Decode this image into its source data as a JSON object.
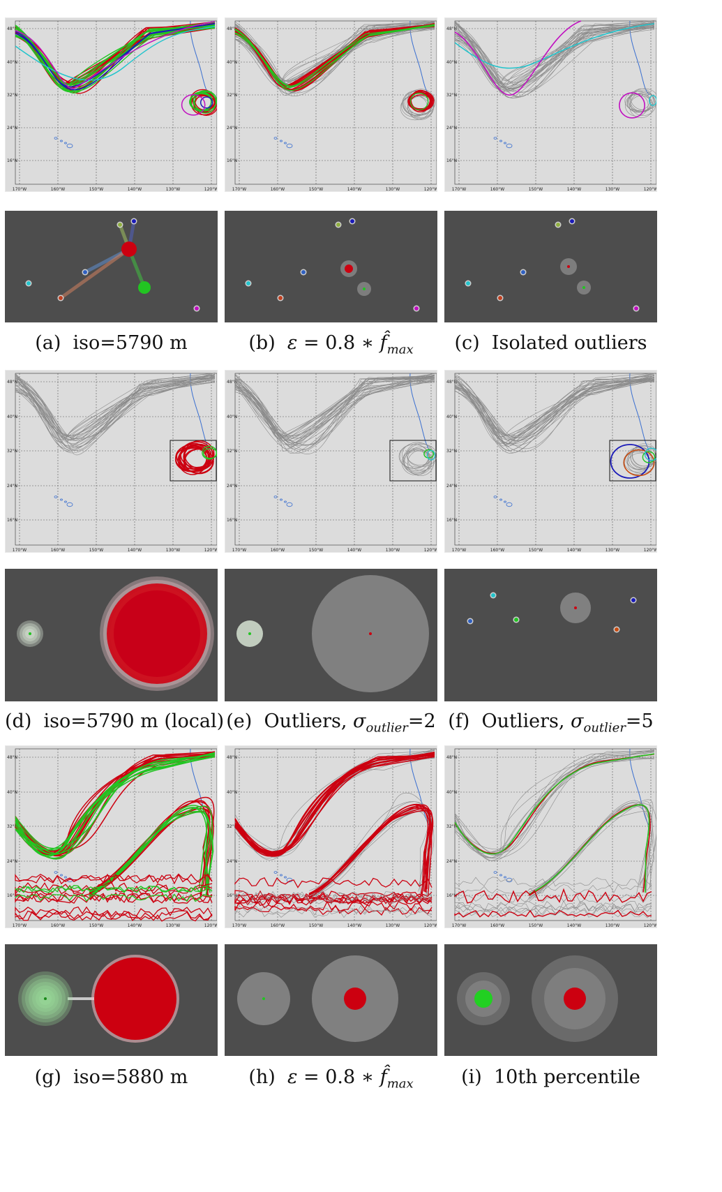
{
  "captions": [
    {
      "id": "a",
      "text": "(a)  iso=5790 m"
    },
    {
      "id": "b",
      "text": "(b)  ε = 0.8 ∗ f̂max"
    },
    {
      "id": "c",
      "text": "(c)  Isolated outliers"
    },
    {
      "id": "d",
      "text": "(d)  iso=5790 m (local)"
    },
    {
      "id": "e",
      "text": "(e)  Outliers, σoutlier=2"
    },
    {
      "id": "f",
      "text": "(f)  Outliers, σoutlier=5"
    },
    {
      "id": "g",
      "text": "(g)  iso=5880 m"
    },
    {
      "id": "h",
      "text": "(h)  ε = 0.8 ∗ f̂max"
    },
    {
      "id": "i",
      "text": "(i)  10th percentile"
    }
  ],
  "map_axes": {
    "lat_labels": [
      "48°N",
      "40°N",
      "32°N",
      "24°N",
      "16°N"
    ],
    "lon_labels": [
      "170°W",
      "160°W",
      "150°W",
      "140°W",
      "130°W",
      "120°W"
    ]
  },
  "colors": {
    "map_bg": "#dcdcdc",
    "cluster_bg": "#4d4d4d",
    "red": "#cc0010",
    "green": "#22c422",
    "blue": "#1a1ab8",
    "cyan": "#22c4cc",
    "magenta": "#c010c0",
    "gray_contour": "#8a8a8a",
    "coast": "#3a6fd0"
  }
}
